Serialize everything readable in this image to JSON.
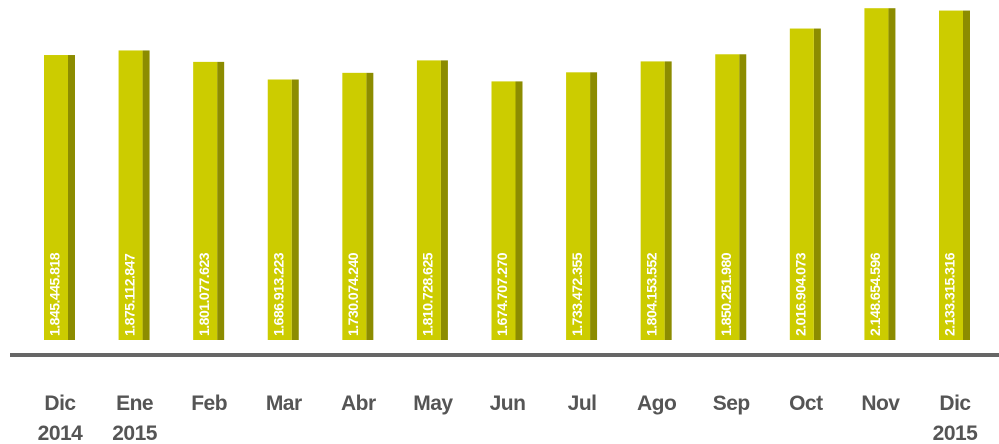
{
  "chart_data": {
    "type": "bar",
    "categories": [
      "Dic 2014",
      "Ene 2015",
      "Feb",
      "Mar",
      "Abr",
      "May",
      "Jun",
      "Jul",
      "Ago",
      "Sep",
      "Oct",
      "Nov",
      "Dic 2015"
    ],
    "values": [
      1845445818,
      1875112847,
      1801077623,
      1686913223,
      1730074240,
      1810728625,
      1674707270,
      1733472355,
      1804153552,
      1850251980,
      2016904073,
      2148654596,
      2133315316
    ],
    "value_labels": [
      "1.845.445.818",
      "1.875.112.847",
      "1.801.077.623",
      "1.686.913.223",
      "1.730.074.240",
      "1.810.728.625",
      "1.674.707.270",
      "1.733.472.355",
      "1.804.153.552",
      "1.850.251.980",
      "2.016.904.073",
      "2.148.654.596",
      "2.133.315.316"
    ],
    "color": "#cccc00",
    "ylim": [
      0,
      2150000000
    ]
  }
}
